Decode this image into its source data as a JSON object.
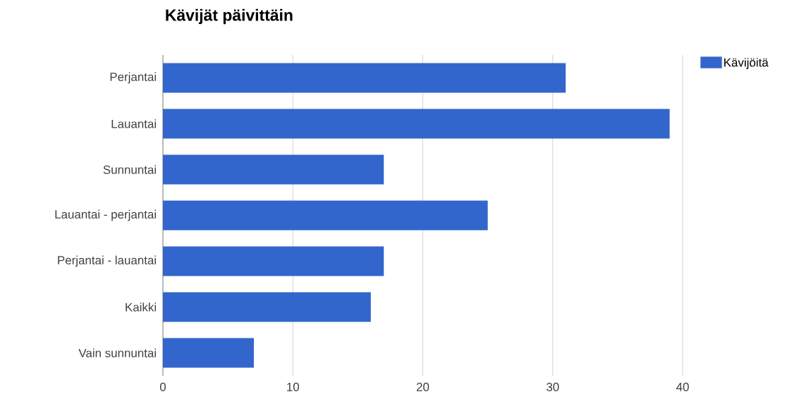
{
  "chart_data": {
    "type": "bar",
    "orientation": "horizontal",
    "title": "Kävijät päivittäin",
    "categories": [
      "Perjantai",
      "Lauantai",
      "Sunnuntai",
      "Lauantai - perjantai",
      "Perjantai - lauantai",
      "Kaikki",
      "Vain sunnuntai"
    ],
    "series": [
      {
        "name": "Kävijöitä",
        "color": "#3366cc",
        "values": [
          31,
          39,
          17,
          25,
          17,
          16,
          7
        ]
      }
    ],
    "xlim": [
      0,
      40
    ],
    "xticks": [
      0,
      10,
      20,
      30,
      40
    ],
    "grid": "x",
    "legend": "top right"
  }
}
